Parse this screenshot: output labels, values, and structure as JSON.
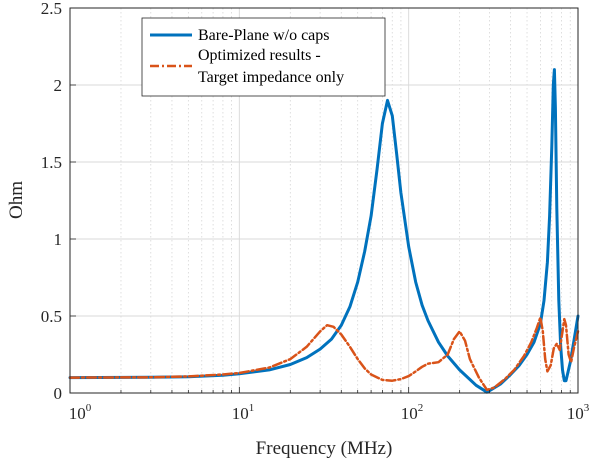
{
  "colors": {
    "series1": "#0072BD",
    "series2": "#D95319",
    "axis": "#262626",
    "grid": "#d9d9d9"
  },
  "chart_data": {
    "type": "line",
    "xlabel": "Frequency (MHz)",
    "ylabel": "Ohm",
    "xscale": "log",
    "xlim": [
      1,
      1000
    ],
    "ylim": [
      0,
      2.5
    ],
    "grid": true,
    "legend_position": "top",
    "x_tick_labels": [
      {
        "base": "10",
        "exp": "0"
      },
      {
        "base": "10",
        "exp": "1"
      },
      {
        "base": "10",
        "exp": "2"
      },
      {
        "base": "10",
        "exp": "3"
      }
    ],
    "y_tick_labels": [
      "0",
      "0.5",
      "1",
      "1.5",
      "2",
      "2.5"
    ],
    "series": [
      {
        "name": "Bare-Plane w/o caps",
        "style": "solid",
        "points": [
          [
            1,
            0.1
          ],
          [
            3,
            0.102
          ],
          [
            5,
            0.105
          ],
          [
            8,
            0.115
          ],
          [
            10,
            0.125
          ],
          [
            15,
            0.15
          ],
          [
            20,
            0.185
          ],
          [
            25,
            0.23
          ],
          [
            30,
            0.285
          ],
          [
            35,
            0.35
          ],
          [
            40,
            0.44
          ],
          [
            45,
            0.56
          ],
          [
            50,
            0.72
          ],
          [
            55,
            0.92
          ],
          [
            60,
            1.15
          ],
          [
            65,
            1.45
          ],
          [
            70,
            1.75
          ],
          [
            75,
            1.9
          ],
          [
            80,
            1.8
          ],
          [
            85,
            1.55
          ],
          [
            90,
            1.3
          ],
          [
            100,
            0.95
          ],
          [
            110,
            0.72
          ],
          [
            120,
            0.57
          ],
          [
            130,
            0.47
          ],
          [
            150,
            0.33
          ],
          [
            170,
            0.24
          ],
          [
            200,
            0.15
          ],
          [
            250,
            0.05
          ],
          [
            290,
            0.005
          ],
          [
            350,
            0.06
          ],
          [
            400,
            0.12
          ],
          [
            450,
            0.18
          ],
          [
            500,
            0.25
          ],
          [
            550,
            0.33
          ],
          [
            600,
            0.45
          ],
          [
            630,
            0.6
          ],
          [
            660,
            0.85
          ],
          [
            680,
            1.15
          ],
          [
            700,
            1.6
          ],
          [
            715,
            2.0
          ],
          [
            725,
            2.1
          ],
          [
            735,
            1.85
          ],
          [
            750,
            1.2
          ],
          [
            770,
            0.6
          ],
          [
            790,
            0.3
          ],
          [
            810,
            0.15
          ],
          [
            830,
            0.08
          ],
          [
            850,
            0.08
          ],
          [
            900,
            0.2
          ],
          [
            950,
            0.35
          ],
          [
            1000,
            0.5
          ]
        ]
      },
      {
        "name": "Optimized results - Target impedance only",
        "name_lines": [
          "Optimized results -",
          "Target impedance only"
        ],
        "style": "dashdot",
        "points": [
          [
            1,
            0.1
          ],
          [
            3,
            0.102
          ],
          [
            5,
            0.108
          ],
          [
            8,
            0.12
          ],
          [
            10,
            0.13
          ],
          [
            15,
            0.165
          ],
          [
            20,
            0.22
          ],
          [
            25,
            0.3
          ],
          [
            30,
            0.4
          ],
          [
            33,
            0.44
          ],
          [
            36,
            0.43
          ],
          [
            40,
            0.38
          ],
          [
            45,
            0.3
          ],
          [
            50,
            0.22
          ],
          [
            55,
            0.16
          ],
          [
            60,
            0.12
          ],
          [
            70,
            0.085
          ],
          [
            80,
            0.08
          ],
          [
            90,
            0.09
          ],
          [
            100,
            0.11
          ],
          [
            110,
            0.14
          ],
          [
            120,
            0.17
          ],
          [
            130,
            0.19
          ],
          [
            150,
            0.2
          ],
          [
            170,
            0.25
          ],
          [
            185,
            0.35
          ],
          [
            200,
            0.4
          ],
          [
            215,
            0.34
          ],
          [
            230,
            0.22
          ],
          [
            260,
            0.1
          ],
          [
            290,
            0.02
          ],
          [
            320,
            0.035
          ],
          [
            370,
            0.09
          ],
          [
            420,
            0.15
          ],
          [
            480,
            0.24
          ],
          [
            530,
            0.33
          ],
          [
            570,
            0.42
          ],
          [
            600,
            0.49
          ],
          [
            620,
            0.4
          ],
          [
            640,
            0.22
          ],
          [
            660,
            0.14
          ],
          [
            690,
            0.18
          ],
          [
            720,
            0.29
          ],
          [
            750,
            0.32
          ],
          [
            780,
            0.28
          ],
          [
            810,
            0.4
          ],
          [
            830,
            0.48
          ],
          [
            850,
            0.44
          ],
          [
            880,
            0.25
          ],
          [
            910,
            0.2
          ],
          [
            950,
            0.3
          ],
          [
            1000,
            0.4
          ]
        ]
      }
    ]
  }
}
